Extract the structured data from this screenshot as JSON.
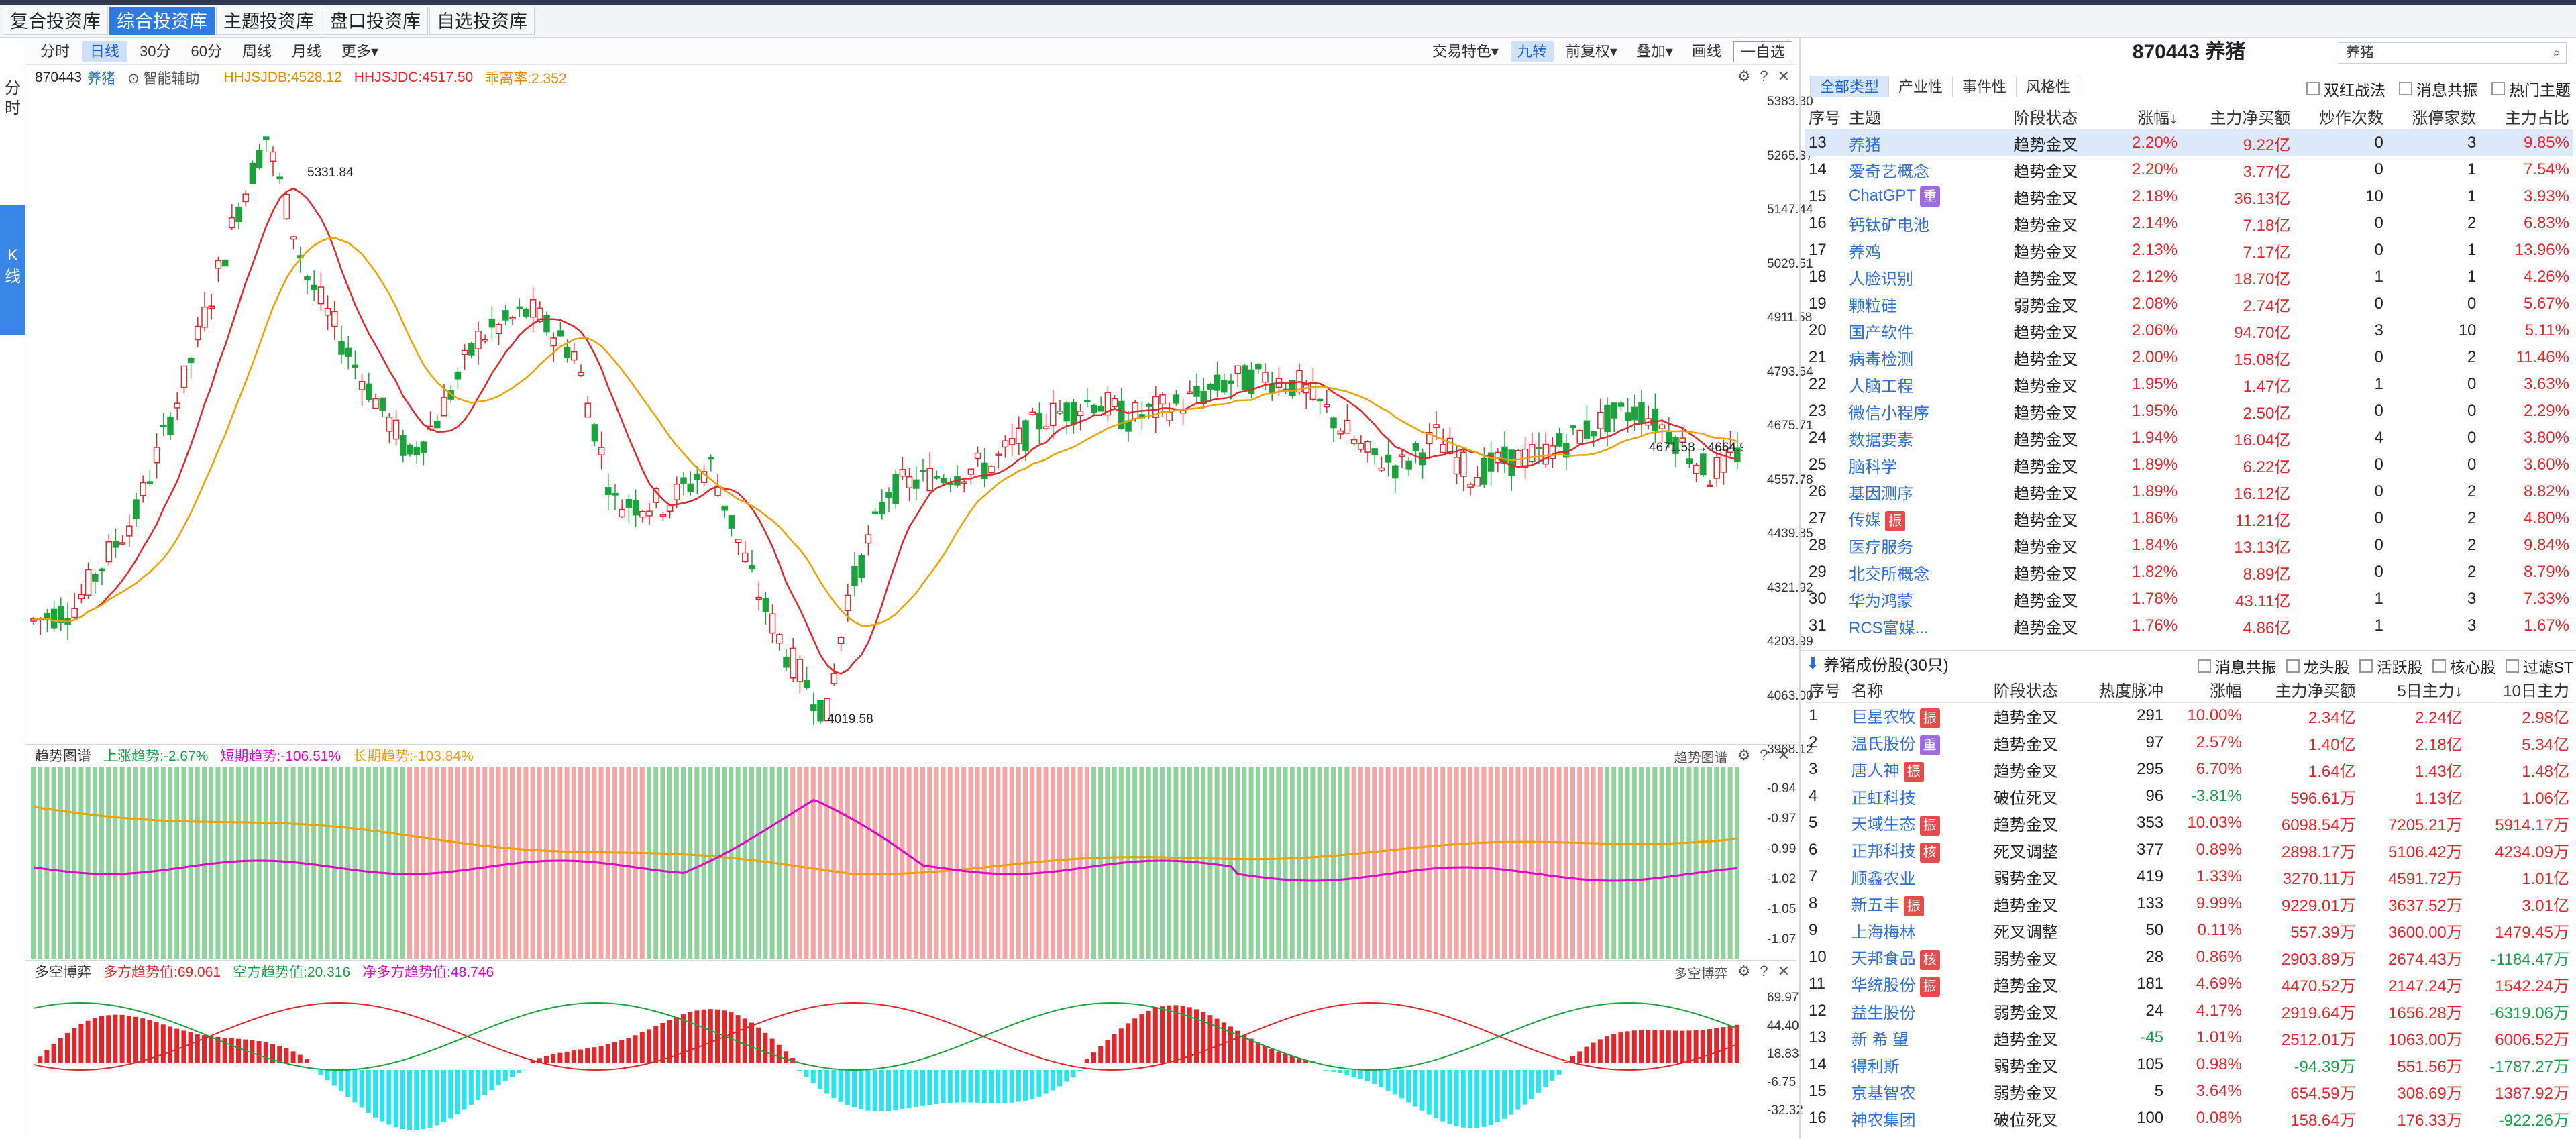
{
  "libTabs": [
    "复合投资库",
    "综合投资库",
    "主题投资库",
    "盘口投资库",
    "自选投资库"
  ],
  "leftRail": {
    "fen": "分时",
    "k": "K线"
  },
  "periods": [
    "分时",
    "日线",
    "30分",
    "60分",
    "周线",
    "月线",
    "更多▾"
  ],
  "rightTools": [
    "交易特色▾",
    "九转",
    "前复权▾",
    "叠加▾",
    "画线",
    "一自选"
  ],
  "info": {
    "code": "870443",
    "name": "养猪",
    "assist": "智能辅助",
    "hhjdb": "HHJSJDB:4528.12",
    "hhjdc": "HHJSJDC:4517.50",
    "rate": "乖离率:2.352"
  },
  "yMain": [
    "5383.30",
    "5265.37",
    "5147.44",
    "5029.51",
    "4911.58",
    "4793.64",
    "4675.71",
    "4557.78",
    "4439.85",
    "4321.92",
    "4203.99",
    "4063.00",
    "3968.12"
  ],
  "peakLabel": "5331.84",
  "lowLabel": "4019.58",
  "lastLabel": "4671.53→4664.95",
  "trendPanel": {
    "title": "趋势图谱",
    "up": "上涨趋势:-2.67%",
    "short": "短期趋势:-106.51%",
    "long": "长期趋势:-103.84%",
    "right": "趋势图谱",
    "y": [
      "-0.94",
      "-0.97",
      "-0.99",
      "-1.02",
      "-1.05",
      "-1.07"
    ]
  },
  "bullPanel": {
    "title": "多空博弈",
    "long": "多方趋势值:69.061",
    "short": "空方趋势值:20.316",
    "net": "净多方趋势值:48.746",
    "right": "多空博弈",
    "y": [
      "69.97",
      "44.40",
      "18.83",
      "-6.75",
      "-32.32"
    ]
  },
  "rightPanel": {
    "title": "870443 养猪",
    "search": "养猪",
    "typeTabs": [
      "全部类型",
      "产业性",
      "事件性",
      "风格性"
    ],
    "checks": [
      "双红战法",
      "消息共振",
      "热门主题"
    ],
    "headers": [
      "序号",
      "主题",
      "阶段状态",
      "涨幅↓",
      "主力净买额",
      "炒作次数",
      "涨停家数",
      "主力占比"
    ],
    "rows": [
      {
        "no": "13",
        "name": "养猪",
        "state": "趋势金叉",
        "chg": "2.20%",
        "net": "9.22亿",
        "times": "0",
        "limit": "3",
        "ratio": "9.85%"
      },
      {
        "no": "14",
        "name": "爱奇艺概念",
        "state": "趋势金叉",
        "chg": "2.20%",
        "net": "3.77亿",
        "times": "0",
        "limit": "1",
        "ratio": "7.54%"
      },
      {
        "no": "15",
        "name": "ChatGPT",
        "tag": "重",
        "state": "趋势金叉",
        "chg": "2.18%",
        "net": "36.13亿",
        "times": "10",
        "limit": "1",
        "ratio": "3.93%"
      },
      {
        "no": "16",
        "name": "钙钛矿电池",
        "state": "趋势金叉",
        "chg": "2.14%",
        "net": "7.18亿",
        "times": "0",
        "limit": "2",
        "ratio": "6.83%"
      },
      {
        "no": "17",
        "name": "养鸡",
        "state": "趋势金叉",
        "chg": "2.13%",
        "net": "7.17亿",
        "times": "0",
        "limit": "1",
        "ratio": "13.96%"
      },
      {
        "no": "18",
        "name": "人脸识别",
        "state": "趋势金叉",
        "chg": "2.12%",
        "net": "18.70亿",
        "times": "1",
        "limit": "1",
        "ratio": "4.26%"
      },
      {
        "no": "19",
        "name": "颗粒硅",
        "state": "弱势金叉",
        "chg": "2.08%",
        "net": "2.74亿",
        "times": "0",
        "limit": "0",
        "ratio": "5.67%"
      },
      {
        "no": "20",
        "name": "国产软件",
        "state": "趋势金叉",
        "chg": "2.06%",
        "net": "94.70亿",
        "times": "3",
        "limit": "10",
        "ratio": "5.11%"
      },
      {
        "no": "21",
        "name": "病毒检测",
        "state": "趋势金叉",
        "chg": "2.00%",
        "net": "15.08亿",
        "times": "0",
        "limit": "2",
        "ratio": "11.46%"
      },
      {
        "no": "22",
        "name": "人脑工程",
        "state": "趋势金叉",
        "chg": "1.95%",
        "net": "1.47亿",
        "times": "1",
        "limit": "0",
        "ratio": "3.63%"
      },
      {
        "no": "23",
        "name": "微信小程序",
        "state": "趋势金叉",
        "chg": "1.95%",
        "net": "2.50亿",
        "times": "0",
        "limit": "0",
        "ratio": "2.29%"
      },
      {
        "no": "24",
        "name": "数据要素",
        "state": "趋势金叉",
        "chg": "1.94%",
        "net": "16.04亿",
        "times": "4",
        "limit": "0",
        "ratio": "3.80%"
      },
      {
        "no": "25",
        "name": "脑科学",
        "state": "趋势金叉",
        "chg": "1.89%",
        "net": "6.22亿",
        "times": "0",
        "limit": "0",
        "ratio": "3.60%"
      },
      {
        "no": "26",
        "name": "基因测序",
        "state": "趋势金叉",
        "chg": "1.89%",
        "net": "16.12亿",
        "times": "0",
        "limit": "2",
        "ratio": "8.82%"
      },
      {
        "no": "27",
        "name": "传媒",
        "tag": "振",
        "state": "趋势金叉",
        "chg": "1.86%",
        "net": "11.21亿",
        "times": "0",
        "limit": "2",
        "ratio": "4.80%"
      },
      {
        "no": "28",
        "name": "医疗服务",
        "state": "趋势金叉",
        "chg": "1.84%",
        "net": "13.13亿",
        "times": "0",
        "limit": "2",
        "ratio": "9.84%"
      },
      {
        "no": "29",
        "name": "北交所概念",
        "state": "趋势金叉",
        "chg": "1.82%",
        "net": "8.89亿",
        "times": "0",
        "limit": "2",
        "ratio": "8.79%"
      },
      {
        "no": "30",
        "name": "华为鸿蒙",
        "state": "趋势金叉",
        "chg": "1.78%",
        "net": "43.11亿",
        "times": "1",
        "limit": "3",
        "ratio": "7.33%"
      },
      {
        "no": "31",
        "name": "RCS富媒...",
        "state": "趋势金叉",
        "chg": "1.76%",
        "net": "4.86亿",
        "times": "1",
        "limit": "3",
        "ratio": "1.67%"
      }
    ],
    "stocksTitle": "养猪成份股(30只)",
    "stocksChecks": [
      "消息共振",
      "龙头股",
      "活跃股",
      "核心股",
      "过滤ST"
    ],
    "stockHeaders": [
      "序号",
      "名称",
      "阶段状态",
      "热度脉冲",
      "涨幅",
      "主力净买额",
      "5日主力↓",
      "10日主力"
    ],
    "stocks": [
      {
        "no": "1",
        "name": "巨星农牧",
        "tag": "振",
        "state": "趋势金叉",
        "heat": "291",
        "chg": "10.00%",
        "net": "2.34亿",
        "d5": "2.24亿",
        "d10": "2.98亿"
      },
      {
        "no": "2",
        "name": "温氏股份",
        "tag": "重",
        "state": "趋势金叉",
        "heat": "97",
        "chg": "2.57%",
        "net": "1.40亿",
        "d5": "2.18亿",
        "d10": "5.34亿"
      },
      {
        "no": "3",
        "name": "唐人神",
        "tag": "振",
        "state": "趋势金叉",
        "heat": "295",
        "chg": "6.70%",
        "net": "1.64亿",
        "d5": "1.43亿",
        "d10": "1.48亿"
      },
      {
        "no": "4",
        "name": "正虹科技",
        "state": "破位死叉",
        "heat": "96",
        "chg": "-3.81%",
        "net": "596.61万",
        "d5": "1.13亿",
        "d10": "1.06亿"
      },
      {
        "no": "5",
        "name": "天域生态",
        "tag": "振",
        "state": "趋势金叉",
        "heat": "353",
        "chg": "10.03%",
        "net": "6098.54万",
        "d5": "7205.21万",
        "d10": "5914.17万"
      },
      {
        "no": "6",
        "name": "正邦科技",
        "tag": "核",
        "state": "死叉调整",
        "heat": "377",
        "chg": "0.89%",
        "net": "2898.17万",
        "d5": "5106.42万",
        "d10": "4234.09万"
      },
      {
        "no": "7",
        "name": "顺鑫农业",
        "state": "弱势金叉",
        "heat": "419",
        "chg": "1.33%",
        "net": "3270.11万",
        "d5": "4591.72万",
        "d10": "1.01亿"
      },
      {
        "no": "8",
        "name": "新五丰",
        "tag": "振",
        "state": "趋势金叉",
        "heat": "133",
        "chg": "9.99%",
        "net": "9229.01万",
        "d5": "3637.52万",
        "d10": "3.01亿"
      },
      {
        "no": "9",
        "name": "上海梅林",
        "state": "死叉调整",
        "heat": "50",
        "chg": "0.11%",
        "net": "557.39万",
        "d5": "3600.00万",
        "d10": "1479.45万"
      },
      {
        "no": "10",
        "name": "天邦食品",
        "tag": "核",
        "state": "弱势金叉",
        "heat": "28",
        "chg": "0.86%",
        "net": "2903.89万",
        "d5": "2674.43万",
        "d10": "-1184.47万"
      },
      {
        "no": "11",
        "name": "华统股份",
        "tag": "振",
        "state": "趋势金叉",
        "heat": "181",
        "chg": "4.69%",
        "net": "4470.52万",
        "d5": "2147.24万",
        "d10": "1542.24万"
      },
      {
        "no": "12",
        "name": "益生股份",
        "state": "弱势金叉",
        "heat": "24",
        "chg": "4.17%",
        "net": "2919.64万",
        "d5": "1656.28万",
        "d10": "-6319.06万"
      },
      {
        "no": "13",
        "name": "新 希 望",
        "state": "趋势金叉",
        "heat": "-45",
        "chg": "1.01%",
        "net": "2512.01万",
        "d5": "1063.00万",
        "d10": "6006.52万"
      },
      {
        "no": "14",
        "name": "得利斯",
        "state": "弱势金叉",
        "heat": "105",
        "chg": "0.98%",
        "net": "-94.39万",
        "d5": "551.56万",
        "d10": "-1787.27万"
      },
      {
        "no": "15",
        "name": "京基智农",
        "state": "弱势金叉",
        "heat": "5",
        "chg": "3.64%",
        "net": "654.59万",
        "d5": "308.69万",
        "d10": "1387.92万"
      },
      {
        "no": "16",
        "name": "神农集团",
        "state": "破位死叉",
        "heat": "100",
        "chg": "0.08%",
        "net": "158.64万",
        "d5": "176.33万",
        "d10": "-922.26万"
      }
    ]
  }
}
